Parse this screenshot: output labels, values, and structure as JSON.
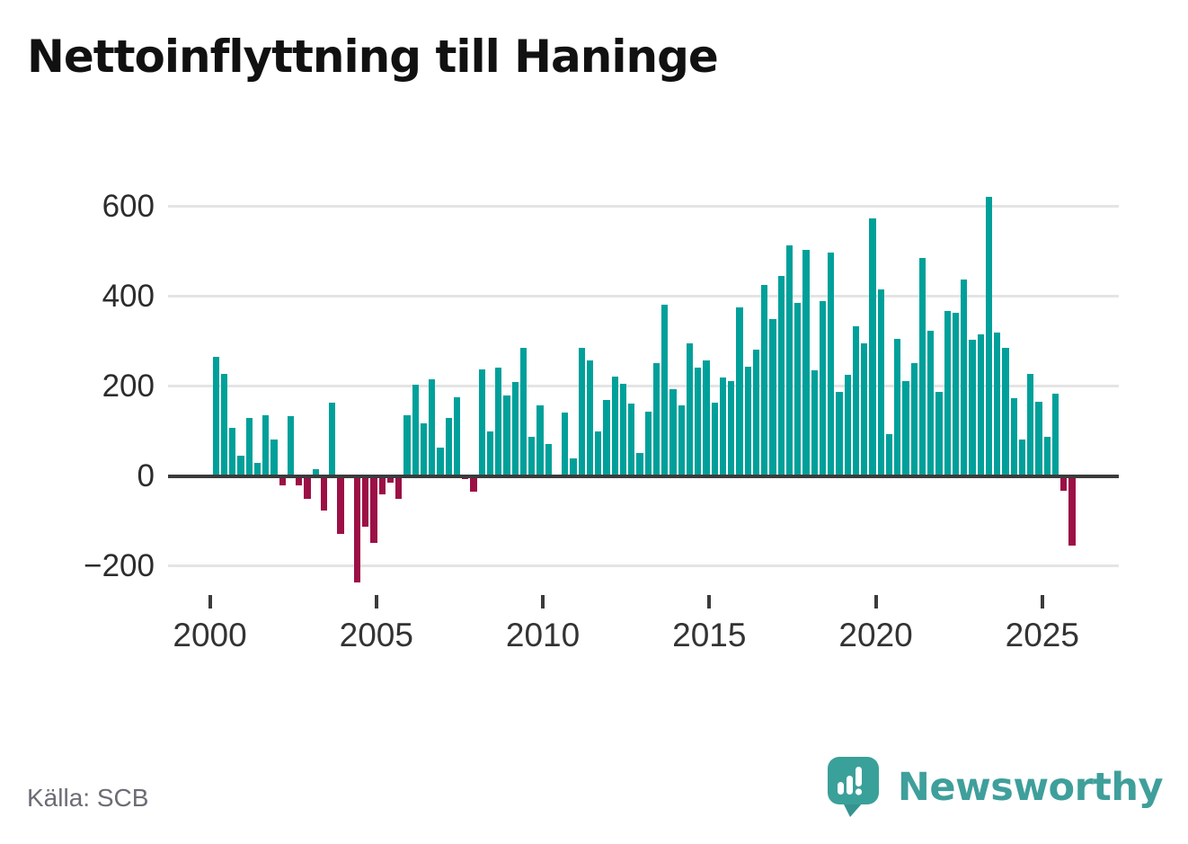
{
  "title": "Nettoinflyttning till Haninge",
  "source": "Källa: SCB",
  "brand": {
    "name": "Newsworthy"
  },
  "chart_data": {
    "type": "bar",
    "title": "Nettoinflyttning till Haninge",
    "xlabel": "",
    "ylabel": "",
    "period": "quarterly",
    "start_year": 2000,
    "end_year": 2025,
    "values": [
      265,
      228,
      107,
      45,
      130,
      30,
      136,
      82,
      -20,
      133,
      -20,
      -50,
      15,
      -76,
      163,
      -129,
      0,
      -237,
      -113,
      -149,
      -41,
      -15,
      -51,
      135,
      203,
      117,
      215,
      64,
      130,
      175,
      -6,
      -35,
      237,
      100,
      242,
      179,
      209,
      285,
      88,
      157,
      72,
      0,
      141,
      39,
      285,
      258,
      99,
      170,
      222,
      205,
      161,
      52,
      144,
      251,
      382,
      194,
      158,
      296,
      242,
      257,
      163,
      219,
      212,
      375,
      244,
      282,
      425,
      350,
      446,
      513,
      386,
      504,
      236,
      389,
      498,
      187,
      226,
      334,
      296,
      574,
      415,
      94,
      305,
      211,
      252,
      485,
      324,
      187,
      368,
      364,
      438,
      303,
      316,
      622,
      320,
      286,
      173,
      82,
      227,
      166,
      87,
      184,
      -33,
      -155
    ],
    "y_ticks": [
      600,
      400,
      200,
      0,
      -200
    ],
    "y_tick_labels": [
      "600",
      "400",
      "200",
      "0",
      "−200"
    ],
    "x_ticks": [
      2000,
      2005,
      2010,
      2015,
      2020,
      2025
    ],
    "ylim": [
      -260,
      650
    ],
    "grid": true,
    "legend": "none",
    "positive_color": "#00a09a",
    "negative_color": "#9c1046",
    "axis_color": "#3b3b3b",
    "grid_color": "#e4e4e4"
  }
}
